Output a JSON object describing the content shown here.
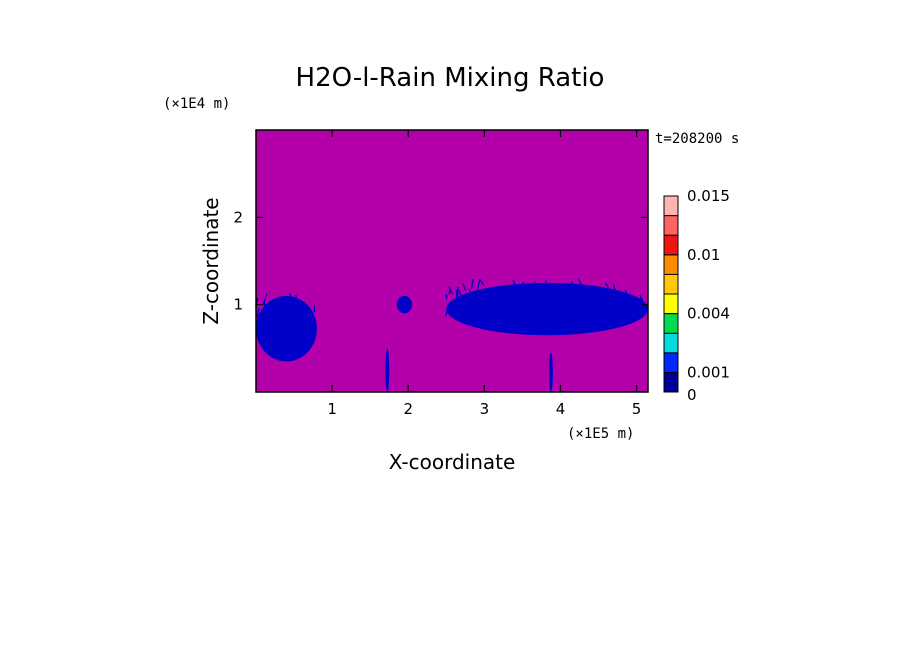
{
  "chart_data": {
    "type": "heatmap",
    "title": "H2O-l-Rain Mixing Ratio",
    "xlabel": "X-coordinate",
    "ylabel": "Z-coordinate",
    "x_unit": "(×1E5 m)",
    "y_unit": "(×1E4 m)",
    "time_label": "t=208200 s",
    "xlim": [
      0,
      5.15
    ],
    "ylim": [
      0,
      3
    ],
    "xticks": [
      "1",
      "2",
      "3",
      "4",
      "5"
    ],
    "yticks": [
      "1",
      "2"
    ],
    "background_color": "#b400aa",
    "features_color": "#0000c8",
    "colorbar": {
      "levels": [
        0,
        0.001,
        0.002,
        0.003,
        0.004,
        0.006,
        0.008,
        0.01,
        0.012,
        0.014,
        0.015
      ],
      "colors": [
        "#000096",
        "#0028ff",
        "#00dcdc",
        "#00dc50",
        "#ffff00",
        "#ffc800",
        "#ff8c00",
        "#f01414",
        "#ff6464",
        "#ffb4b4"
      ],
      "labels": [
        "0",
        "0.001",
        "0.004",
        "0.01",
        "0.015"
      ]
    },
    "rain_regions": [
      {
        "name": "left cell",
        "x": [
          0.0,
          0.8
        ],
        "z": [
          0.35,
          1.1
        ]
      },
      {
        "name": "small cell",
        "x": [
          1.85,
          2.05
        ],
        "z": [
          0.9,
          1.1
        ]
      },
      {
        "name": "right cloud band",
        "x": [
          2.5,
          5.15
        ],
        "z": [
          0.65,
          1.25
        ]
      },
      {
        "name": "thin column 1",
        "x": [
          1.7,
          1.75
        ],
        "z": [
          0.0,
          0.5
        ]
      },
      {
        "name": "thin column 2",
        "x": [
          3.85,
          3.9
        ],
        "z": [
          0.0,
          0.45
        ]
      }
    ]
  }
}
